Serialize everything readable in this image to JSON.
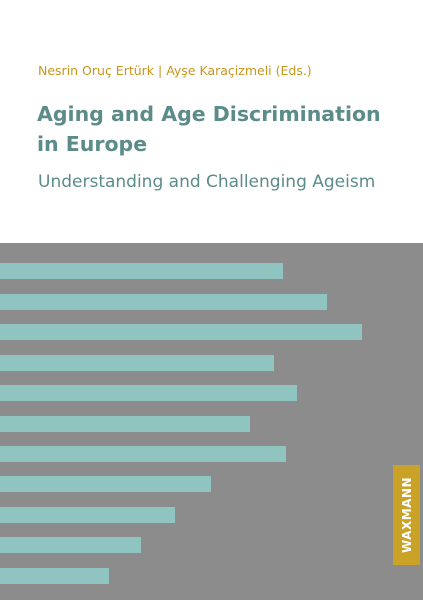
{
  "cover": {
    "authors": "Nesrin Oruç Ertürk | Ayşe Karaçizmeli (Eds.)",
    "title": [
      "Aging and Age Discrimination",
      "in Europe"
    ],
    "subtitle": "Understanding and Challenging Ageism",
    "publisher": "WAXMANN"
  }
}
